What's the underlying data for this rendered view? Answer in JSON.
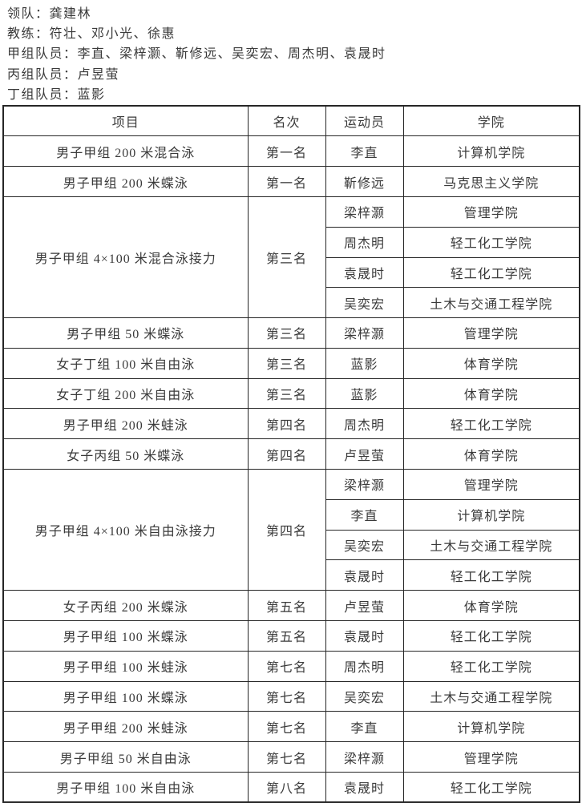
{
  "colors": {
    "text": "#3a3a3a",
    "border": "#262626",
    "background": "#ffffff"
  },
  "header": {
    "lines": [
      "领队：龚建林",
      "教练：符壮、邓小光、徐惠",
      "甲组队员：李直、梁梓灏、靳修远、吴奕宏、周杰明、袁晟时",
      "丙组队员：卢昱萤",
      "丁组队员：蓝影"
    ]
  },
  "table": {
    "columns": [
      "项目",
      "名次",
      "运动员",
      "学院"
    ],
    "rows": [
      {
        "event": "男子甲组 200 米混合泳",
        "rank": "第一名",
        "athletes": [
          {
            "name": "李直",
            "college": "计算机学院"
          }
        ]
      },
      {
        "event": "男子甲组 200 米蝶泳",
        "rank": "第一名",
        "athletes": [
          {
            "name": "靳修远",
            "college": "马克思主义学院"
          }
        ]
      },
      {
        "event": "男子甲组 4×100 米混合泳接力",
        "rank": "第三名",
        "athletes": [
          {
            "name": "梁梓灏",
            "college": "管理学院"
          },
          {
            "name": "周杰明",
            "college": "轻工化工学院"
          },
          {
            "name": "袁晟时",
            "college": "轻工化工学院"
          },
          {
            "name": "吴奕宏",
            "college": "土木与交通工程学院"
          }
        ]
      },
      {
        "event": "男子甲组 50 米蝶泳",
        "rank": "第三名",
        "athletes": [
          {
            "name": "梁梓灏",
            "college": "管理学院"
          }
        ]
      },
      {
        "event": "女子丁组 100 米自由泳",
        "rank": "第三名",
        "athletes": [
          {
            "name": "蓝影",
            "college": "体育学院"
          }
        ]
      },
      {
        "event": "女子丁组 200 米自由泳",
        "rank": "第三名",
        "athletes": [
          {
            "name": "蓝影",
            "college": "体育学院"
          }
        ]
      },
      {
        "event": "男子甲组 200 米蛙泳",
        "rank": "第四名",
        "athletes": [
          {
            "name": "周杰明",
            "college": "轻工化工学院"
          }
        ]
      },
      {
        "event": "女子丙组 50 米蝶泳",
        "rank": "第四名",
        "athletes": [
          {
            "name": "卢昱萤",
            "college": "体育学院"
          }
        ]
      },
      {
        "event": "男子甲组 4×100 米自由泳接力",
        "rank": "第四名",
        "athletes": [
          {
            "name": "梁梓灏",
            "college": "管理学院"
          },
          {
            "name": "李直",
            "college": "计算机学院"
          },
          {
            "name": "吴奕宏",
            "college": "土木与交通工程学院"
          },
          {
            "name": "袁晟时",
            "college": "轻工化工学院"
          }
        ]
      },
      {
        "event": "女子丙组 200 米蝶泳",
        "rank": "第五名",
        "athletes": [
          {
            "name": "卢昱萤",
            "college": "体育学院"
          }
        ]
      },
      {
        "event": "男子甲组 100 米蝶泳",
        "rank": "第五名",
        "athletes": [
          {
            "name": "袁晟时",
            "college": "轻工化工学院"
          }
        ]
      },
      {
        "event": "男子甲组 100 米蛙泳",
        "rank": "第七名",
        "athletes": [
          {
            "name": "周杰明",
            "college": "轻工化工学院"
          }
        ]
      },
      {
        "event": "男子甲组 100 米蝶泳",
        "rank": "第七名",
        "athletes": [
          {
            "name": "吴奕宏",
            "college": "土木与交通工程学院"
          }
        ]
      },
      {
        "event": "男子甲组 200 米蛙泳",
        "rank": "第七名",
        "athletes": [
          {
            "name": "李直",
            "college": "计算机学院"
          }
        ]
      },
      {
        "event": "男子甲组 50 米自由泳",
        "rank": "第七名",
        "athletes": [
          {
            "name": "梁梓灏",
            "college": "管理学院"
          }
        ]
      },
      {
        "event": "男子甲组 100 米自由泳",
        "rank": "第八名",
        "athletes": [
          {
            "name": "袁晟时",
            "college": "轻工化工学院"
          }
        ]
      }
    ]
  }
}
